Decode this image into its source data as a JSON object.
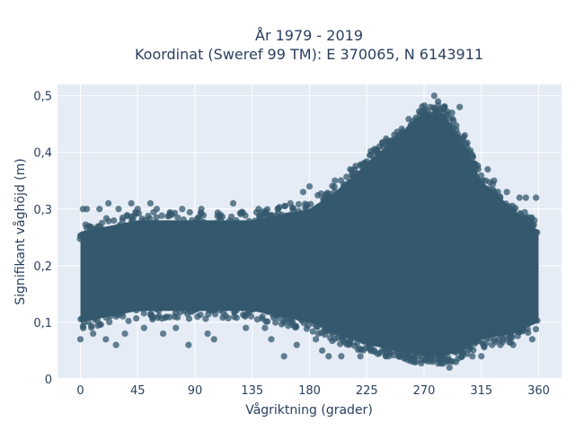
{
  "chart_data": {
    "type": "scatter",
    "title_line1": "År 1979 - 2019",
    "title_line2": "Koordinat (Sweref 99 TM): E 370065, N 6143911",
    "xlabel": "Vågriktning (grader)",
    "ylabel": "Signifikant våghöjd (m)",
    "xlim": [
      -18,
      378
    ],
    "ylim": [
      0,
      0.52
    ],
    "x_ticks": [
      0,
      45,
      90,
      135,
      180,
      225,
      270,
      315,
      360
    ],
    "x_tick_labels": [
      "0",
      "45",
      "90",
      "135",
      "180",
      "225",
      "270",
      "315",
      "360"
    ],
    "y_ticks": [
      0,
      0.1,
      0.2,
      0.3,
      0.4,
      0.5
    ],
    "y_tick_labels": [
      "0",
      "0,1",
      "0,2",
      "0,3",
      "0,4",
      "0,5"
    ],
    "grid": true,
    "marker_color": "#34586e",
    "plot_background": "#e5ecf6",
    "series": [
      {
        "density_envelope": [
          {
            "x": 0,
            "low": 0.1,
            "high": 0.26
          },
          {
            "x": 45,
            "low": 0.12,
            "high": 0.28
          },
          {
            "x": 90,
            "low": 0.12,
            "high": 0.28
          },
          {
            "x": 135,
            "low": 0.12,
            "high": 0.28
          },
          {
            "x": 180,
            "low": 0.1,
            "high": 0.3
          },
          {
            "x": 200,
            "low": 0.08,
            "high": 0.33
          },
          {
            "x": 225,
            "low": 0.06,
            "high": 0.38
          },
          {
            "x": 250,
            "low": 0.05,
            "high": 0.43
          },
          {
            "x": 270,
            "low": 0.04,
            "high": 0.47
          },
          {
            "x": 285,
            "low": 0.04,
            "high": 0.47
          },
          {
            "x": 300,
            "low": 0.05,
            "high": 0.42
          },
          {
            "x": 315,
            "low": 0.07,
            "high": 0.35
          },
          {
            "x": 340,
            "low": 0.08,
            "high": 0.3
          },
          {
            "x": 360,
            "low": 0.1,
            "high": 0.26
          }
        ],
        "outliers": [
          {
            "x": 0,
            "y": 0.07
          },
          {
            "x": 2,
            "y": 0.3
          },
          {
            "x": 5,
            "y": 0.3
          },
          {
            "x": 10,
            "y": 0.08
          },
          {
            "x": 15,
            "y": 0.3
          },
          {
            "x": 20,
            "y": 0.07
          },
          {
            "x": 22,
            "y": 0.31
          },
          {
            "x": 28,
            "y": 0.06
          },
          {
            "x": 30,
            "y": 0.3
          },
          {
            "x": 35,
            "y": 0.08
          },
          {
            "x": 40,
            "y": 0.31
          },
          {
            "x": 45,
            "y": 0.3
          },
          {
            "x": 50,
            "y": 0.09
          },
          {
            "x": 55,
            "y": 0.31
          },
          {
            "x": 60,
            "y": 0.3
          },
          {
            "x": 65,
            "y": 0.08
          },
          {
            "x": 72,
            "y": 0.29
          },
          {
            "x": 75,
            "y": 0.09
          },
          {
            "x": 80,
            "y": 0.3
          },
          {
            "x": 85,
            "y": 0.06
          },
          {
            "x": 95,
            "y": 0.3
          },
          {
            "x": 100,
            "y": 0.08
          },
          {
            "x": 105,
            "y": 0.07
          },
          {
            "x": 110,
            "y": 0.29
          },
          {
            "x": 120,
            "y": 0.31
          },
          {
            "x": 130,
            "y": 0.09
          },
          {
            "x": 140,
            "y": 0.3
          },
          {
            "x": 145,
            "y": 0.09
          },
          {
            "x": 150,
            "y": 0.07
          },
          {
            "x": 155,
            "y": 0.3
          },
          {
            "x": 160,
            "y": 0.04
          },
          {
            "x": 165,
            "y": 0.31
          },
          {
            "x": 170,
            "y": 0.06
          },
          {
            "x": 175,
            "y": 0.33
          },
          {
            "x": 180,
            "y": 0.34
          },
          {
            "x": 185,
            "y": 0.07
          },
          {
            "x": 190,
            "y": 0.05
          },
          {
            "x": 192,
            "y": 0.32
          },
          {
            "x": 195,
            "y": 0.04
          },
          {
            "x": 200,
            "y": 0.35
          },
          {
            "x": 205,
            "y": 0.04
          },
          {
            "x": 212,
            "y": 0.37
          },
          {
            "x": 220,
            "y": 0.04
          },
          {
            "x": 230,
            "y": 0.38
          },
          {
            "x": 240,
            "y": 0.04
          },
          {
            "x": 245,
            "y": 0.42
          },
          {
            "x": 250,
            "y": 0.04
          },
          {
            "x": 258,
            "y": 0.44
          },
          {
            "x": 262,
            "y": 0.45
          },
          {
            "x": 268,
            "y": 0.04
          },
          {
            "x": 270,
            "y": 0.47
          },
          {
            "x": 275,
            "y": 0.48
          },
          {
            "x": 278,
            "y": 0.5
          },
          {
            "x": 281,
            "y": 0.49
          },
          {
            "x": 283,
            "y": 0.03
          },
          {
            "x": 286,
            "y": 0.48
          },
          {
            "x": 290,
            "y": 0.02
          },
          {
            "x": 292,
            "y": 0.47
          },
          {
            "x": 295,
            "y": 0.03
          },
          {
            "x": 298,
            "y": 0.48
          },
          {
            "x": 302,
            "y": 0.43
          },
          {
            "x": 308,
            "y": 0.04
          },
          {
            "x": 310,
            "y": 0.38
          },
          {
            "x": 315,
            "y": 0.04
          },
          {
            "x": 320,
            "y": 0.37
          },
          {
            "x": 325,
            "y": 0.35
          },
          {
            "x": 330,
            "y": 0.06
          },
          {
            "x": 335,
            "y": 0.33
          },
          {
            "x": 340,
            "y": 0.06
          },
          {
            "x": 345,
            "y": 0.32
          },
          {
            "x": 350,
            "y": 0.32
          },
          {
            "x": 355,
            "y": 0.07
          },
          {
            "x": 358,
            "y": 0.32
          }
        ]
      }
    ]
  }
}
